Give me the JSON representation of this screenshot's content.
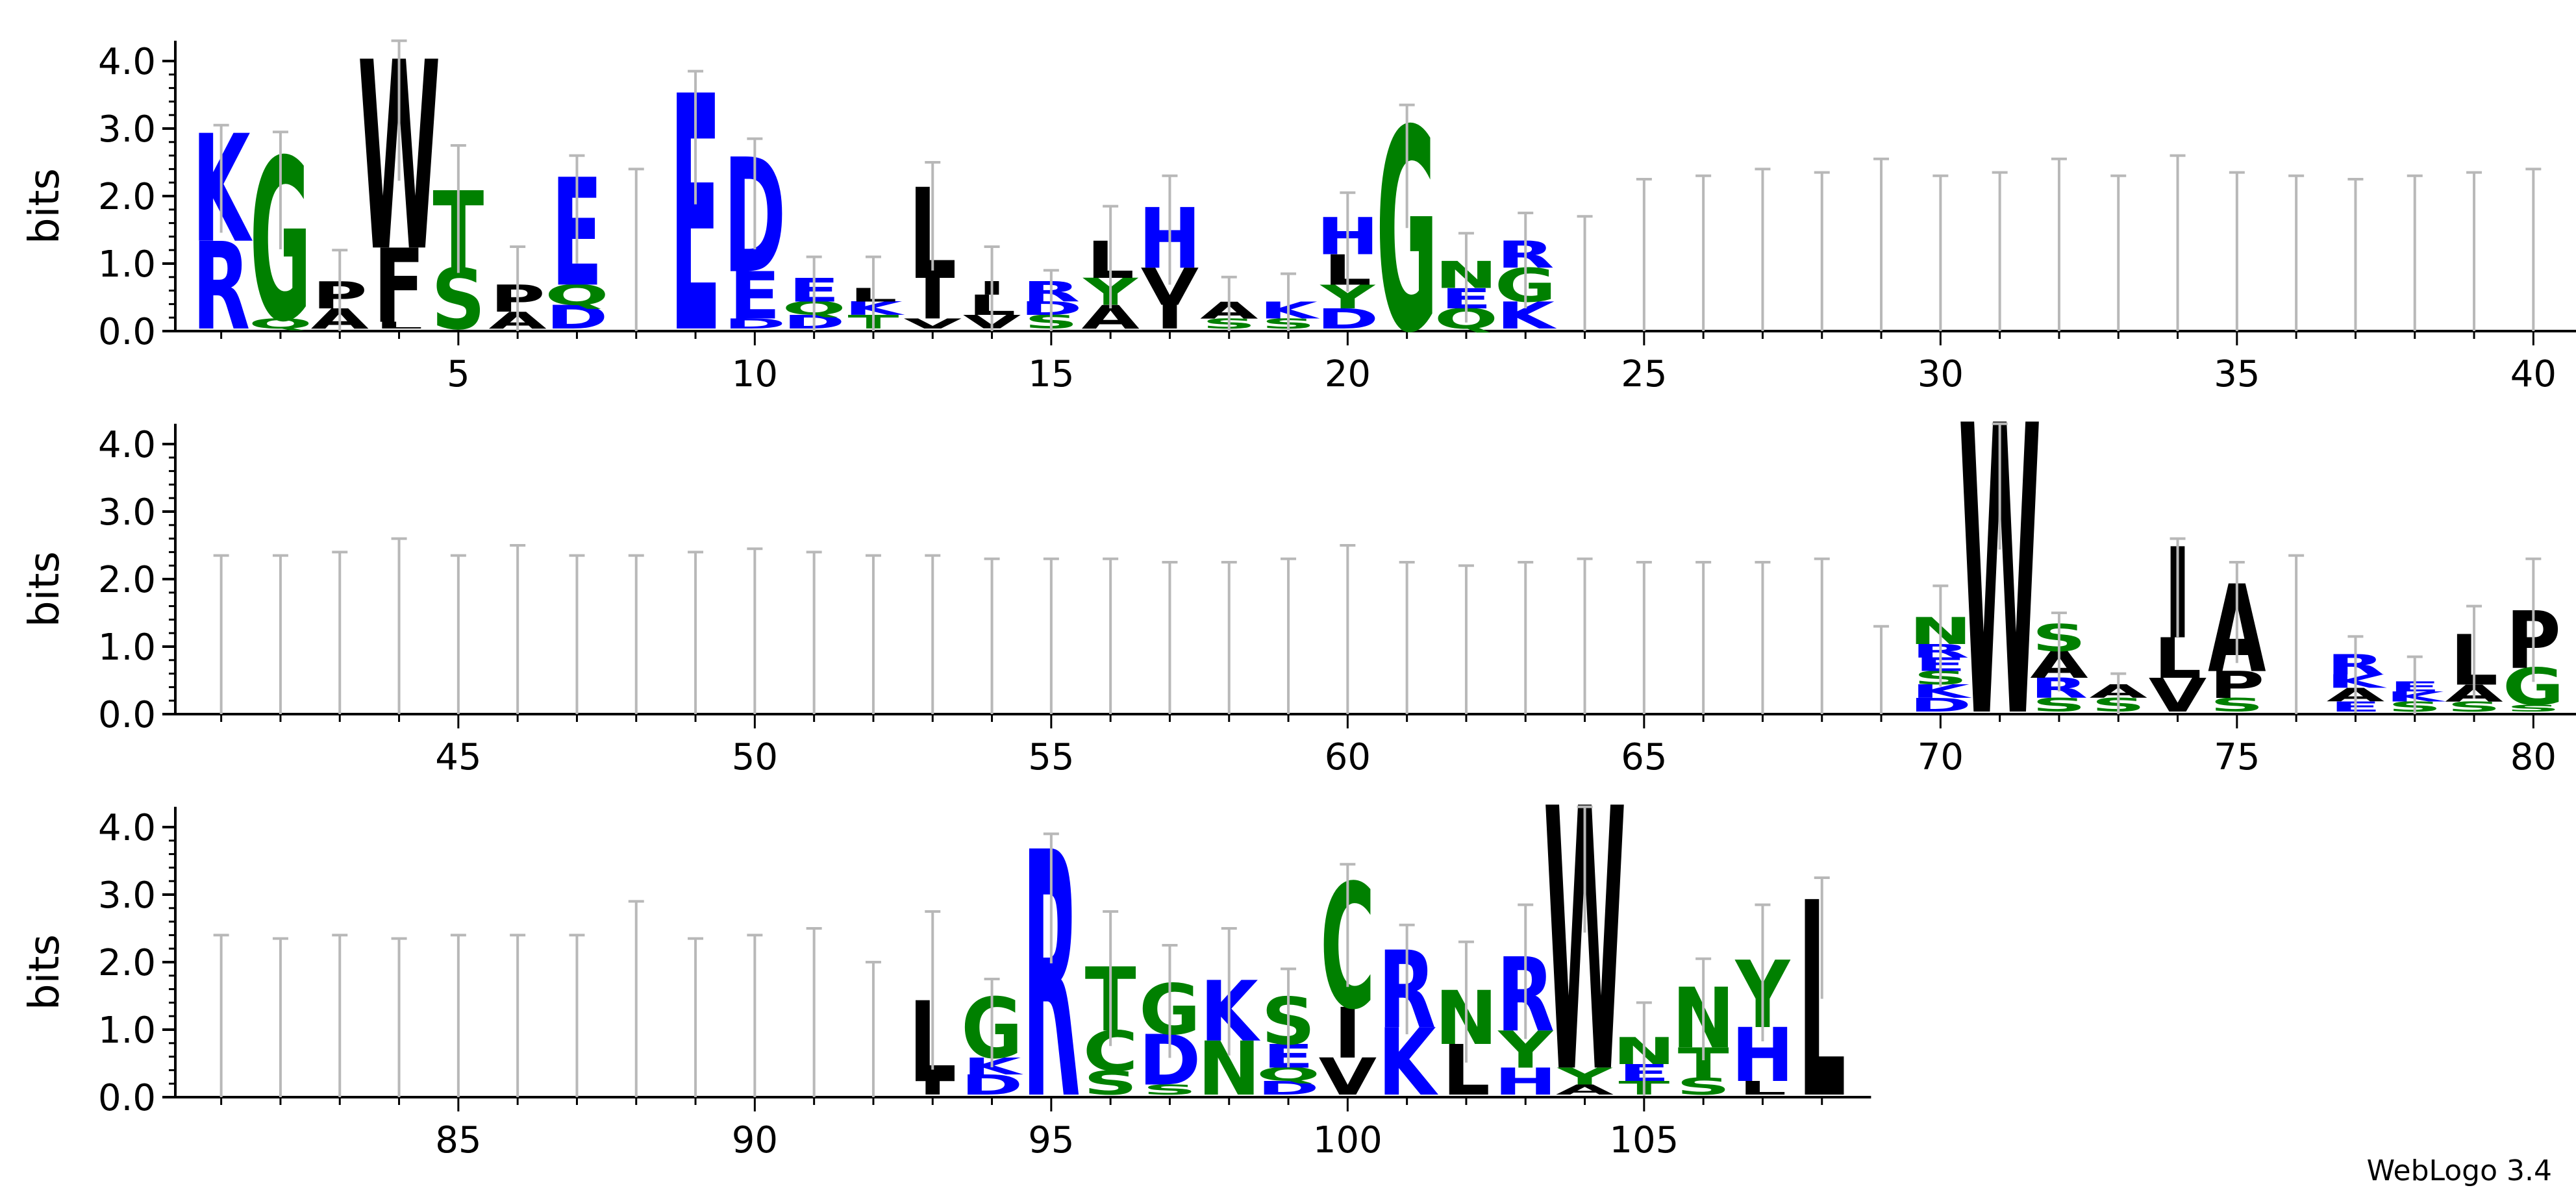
{
  "chart_data": {
    "type": "sequence-logo",
    "ylabel": "bits",
    "ylim": [
      0,
      4.3
    ],
    "yticks": [
      "0.0",
      "1.0",
      "2.0",
      "3.0",
      "4.0"
    ],
    "credit": "WebLogo 3.4",
    "colors": {
      "basic": "#0000ff",
      "polar": "#008000",
      "hydrophobic": "#000000"
    },
    "rows": [
      {
        "start": 1,
        "end": 40,
        "xticks": [
          5,
          10,
          15,
          20,
          25,
          30,
          35,
          40
        ]
      },
      {
        "start": 41,
        "end": 80,
        "xticks": [
          45,
          50,
          55,
          60,
          65,
          70,
          75,
          80
        ]
      },
      {
        "start": 81,
        "end": 108,
        "xticks": [
          85,
          90,
          95,
          100,
          105
        ]
      }
    ],
    "positions": [
      {
        "pos": 1,
        "err": 3.05,
        "stack": [
          [
            "R",
            1.3
          ],
          [
            "K",
            1.6
          ]
        ]
      },
      {
        "pos": 2,
        "err": 2.95,
        "stack": [
          [
            "Q",
            0.15
          ],
          [
            "G",
            2.4
          ]
        ]
      },
      {
        "pos": 3,
        "err": 1.2,
        "stack": [
          [
            "A",
            0.3
          ],
          [
            "P",
            0.4
          ]
        ]
      },
      {
        "pos": 4,
        "err": 4.3,
        "stack": [
          [
            "L",
            0.1
          ],
          [
            "F",
            1.1
          ],
          [
            "W",
            2.8
          ]
        ]
      },
      {
        "pos": 5,
        "err": 2.75,
        "stack": [
          [
            "S",
            0.9
          ],
          [
            "T",
            1.15
          ]
        ]
      },
      {
        "pos": 6,
        "err": 1.25,
        "stack": [
          [
            "A",
            0.25
          ],
          [
            "P",
            0.4
          ]
        ]
      },
      {
        "pos": 7,
        "err": 2.6,
        "stack": [
          [
            "D",
            0.35
          ],
          [
            "Q",
            0.3
          ],
          [
            "E",
            1.6
          ]
        ]
      },
      {
        "pos": 8,
        "err": 2.4,
        "stack": []
      },
      {
        "pos": 9,
        "err": 3.85,
        "stack": [
          [
            "E",
            3.5
          ]
        ]
      },
      {
        "pos": 10,
        "err": 2.85,
        "stack": [
          [
            "D",
            0.15
          ],
          [
            "E",
            0.7
          ],
          [
            "D",
            1.7
          ]
        ]
      },
      {
        "pos": 11,
        "err": 1.1,
        "stack": [
          [
            "D",
            0.2
          ],
          [
            "Q",
            0.2
          ],
          [
            "E",
            0.35
          ]
        ]
      },
      {
        "pos": 12,
        "err": 1.1,
        "stack": [
          [
            "T",
            0.2
          ],
          [
            "K",
            0.2
          ],
          [
            "L",
            0.2
          ]
        ]
      },
      {
        "pos": 13,
        "err": 2.5,
        "stack": [
          [
            "V",
            0.15
          ],
          [
            "I",
            0.6
          ],
          [
            "L",
            1.35
          ]
        ]
      },
      {
        "pos": 14,
        "err": 1.25,
        "stack": [
          [
            "V",
            0.2
          ],
          [
            "L",
            0.3
          ],
          [
            "I",
            0.2
          ]
        ]
      },
      {
        "pos": 15,
        "err": 0.9,
        "stack": [
          [
            "S",
            0.2
          ],
          [
            "D",
            0.2
          ],
          [
            "R",
            0.3
          ]
        ]
      },
      {
        "pos": 16,
        "err": 1.85,
        "stack": [
          [
            "A",
            0.35
          ],
          [
            "Y",
            0.4
          ],
          [
            "L",
            0.55
          ]
        ]
      },
      {
        "pos": 17,
        "err": 2.3,
        "stack": [
          [
            "I",
            0.35
          ],
          [
            "V",
            0.55
          ],
          [
            "H",
            0.9
          ]
        ]
      },
      {
        "pos": 18,
        "err": 0.8,
        "stack": [
          [
            "S",
            0.15
          ],
          [
            "A",
            0.25
          ]
        ]
      },
      {
        "pos": 19,
        "err": 0.85,
        "stack": [
          [
            "S",
            0.15
          ],
          [
            "K",
            0.25
          ]
        ]
      },
      {
        "pos": 20,
        "err": 2.05,
        "stack": [
          [
            "D",
            0.3
          ],
          [
            "Y",
            0.35
          ],
          [
            "L",
            0.45
          ],
          [
            "H",
            0.55
          ]
        ]
      },
      {
        "pos": 21,
        "err": 3.35,
        "stack": [
          [
            "G",
            3.0
          ]
        ]
      },
      {
        "pos": 22,
        "err": 1.45,
        "stack": [
          [
            "Q",
            0.3
          ],
          [
            "E",
            0.3
          ],
          [
            "N",
            0.4
          ]
        ]
      },
      {
        "pos": 23,
        "err": 1.75,
        "stack": [
          [
            "K",
            0.4
          ],
          [
            "G",
            0.5
          ],
          [
            "R",
            0.4
          ]
        ]
      },
      {
        "pos": 24,
        "err": 1.7,
        "stack": []
      },
      {
        "pos": 25,
        "err": 2.25,
        "stack": []
      },
      {
        "pos": 26,
        "err": 2.3,
        "stack": []
      },
      {
        "pos": 27,
        "err": 2.4,
        "stack": []
      },
      {
        "pos": 28,
        "err": 2.35,
        "stack": []
      },
      {
        "pos": 29,
        "err": 2.55,
        "stack": []
      },
      {
        "pos": 30,
        "err": 2.3,
        "stack": []
      },
      {
        "pos": 31,
        "err": 2.35,
        "stack": []
      },
      {
        "pos": 32,
        "err": 2.55,
        "stack": []
      },
      {
        "pos": 33,
        "err": 2.3,
        "stack": []
      },
      {
        "pos": 34,
        "err": 2.6,
        "stack": []
      },
      {
        "pos": 35,
        "err": 2.35,
        "stack": []
      },
      {
        "pos": 36,
        "err": 2.3,
        "stack": []
      },
      {
        "pos": 37,
        "err": 2.25,
        "stack": []
      },
      {
        "pos": 38,
        "err": 2.3,
        "stack": []
      },
      {
        "pos": 39,
        "err": 2.35,
        "stack": []
      },
      {
        "pos": 40,
        "err": 2.4,
        "stack": []
      },
      {
        "pos": 41,
        "err": 2.35,
        "stack": []
      },
      {
        "pos": 42,
        "err": 2.35,
        "stack": []
      },
      {
        "pos": 43,
        "err": 2.4,
        "stack": []
      },
      {
        "pos": 44,
        "err": 2.6,
        "stack": []
      },
      {
        "pos": 45,
        "err": 2.35,
        "stack": []
      },
      {
        "pos": 46,
        "err": 2.5,
        "stack": []
      },
      {
        "pos": 47,
        "err": 2.35,
        "stack": []
      },
      {
        "pos": 48,
        "err": 2.35,
        "stack": []
      },
      {
        "pos": 49,
        "err": 2.4,
        "stack": []
      },
      {
        "pos": 50,
        "err": 2.45,
        "stack": []
      },
      {
        "pos": 51,
        "err": 2.4,
        "stack": []
      },
      {
        "pos": 52,
        "err": 2.35,
        "stack": []
      },
      {
        "pos": 53,
        "err": 2.35,
        "stack": []
      },
      {
        "pos": 54,
        "err": 2.3,
        "stack": []
      },
      {
        "pos": 55,
        "err": 2.3,
        "stack": []
      },
      {
        "pos": 56,
        "err": 2.3,
        "stack": []
      },
      {
        "pos": 57,
        "err": 2.25,
        "stack": []
      },
      {
        "pos": 58,
        "err": 2.25,
        "stack": []
      },
      {
        "pos": 59,
        "err": 2.3,
        "stack": []
      },
      {
        "pos": 60,
        "err": 2.5,
        "stack": []
      },
      {
        "pos": 61,
        "err": 2.25,
        "stack": []
      },
      {
        "pos": 62,
        "err": 2.2,
        "stack": []
      },
      {
        "pos": 63,
        "err": 2.25,
        "stack": []
      },
      {
        "pos": 64,
        "err": 2.3,
        "stack": []
      },
      {
        "pos": 65,
        "err": 2.25,
        "stack": []
      },
      {
        "pos": 66,
        "err": 2.25,
        "stack": []
      },
      {
        "pos": 67,
        "err": 2.25,
        "stack": []
      },
      {
        "pos": 68,
        "err": 2.3,
        "stack": []
      },
      {
        "pos": 69,
        "err": 1.3,
        "stack": []
      },
      {
        "pos": 70,
        "err": 1.9,
        "stack": [
          [
            "D",
            0.2
          ],
          [
            "K",
            0.2
          ],
          [
            "S",
            0.2
          ],
          [
            "E",
            0.2
          ],
          [
            "R",
            0.2
          ],
          [
            "N",
            0.4
          ]
        ]
      },
      {
        "pos": 71,
        "err": 4.3,
        "stack": [
          [
            "W",
            4.3
          ]
        ]
      },
      {
        "pos": 72,
        "err": 1.5,
        "stack": [
          [
            "S",
            0.2
          ],
          [
            "R",
            0.3
          ],
          [
            "A",
            0.4
          ],
          [
            "S",
            0.4
          ]
        ]
      },
      {
        "pos": 73,
        "err": 0.6,
        "stack": [
          [
            "S",
            0.2
          ],
          [
            "A",
            0.2
          ]
        ]
      },
      {
        "pos": 74,
        "err": 2.6,
        "stack": [
          [
            "V",
            0.5
          ],
          [
            "L",
            0.6
          ],
          [
            "I",
            1.35
          ]
        ]
      },
      {
        "pos": 75,
        "err": 2.25,
        "stack": [
          [
            "S",
            0.2
          ],
          [
            "P",
            0.4
          ],
          [
            "A",
            1.3
          ]
        ]
      },
      {
        "pos": 76,
        "err": 2.35,
        "stack": []
      },
      {
        "pos": 77,
        "err": 1.15,
        "stack": [
          [
            "E",
            0.15
          ],
          [
            "A",
            0.2
          ],
          [
            "K",
            0.2
          ],
          [
            "R",
            0.3
          ]
        ]
      },
      {
        "pos": 78,
        "err": 0.85,
        "stack": [
          [
            "S",
            0.15
          ],
          [
            "K",
            0.15
          ],
          [
            "E",
            0.15
          ]
        ]
      },
      {
        "pos": 79,
        "err": 1.6,
        "stack": [
          [
            "S",
            0.15
          ],
          [
            "A",
            0.25
          ],
          [
            "L",
            0.75
          ]
        ]
      },
      {
        "pos": 80,
        "err": 2.3,
        "stack": [
          [
            "S",
            0.1
          ],
          [
            "G",
            0.55
          ],
          [
            "P",
            0.85
          ]
        ]
      },
      {
        "pos": 81,
        "err": 2.4,
        "stack": []
      },
      {
        "pos": 82,
        "err": 2.35,
        "stack": []
      },
      {
        "pos": 83,
        "err": 2.4,
        "stack": []
      },
      {
        "pos": 84,
        "err": 2.35,
        "stack": []
      },
      {
        "pos": 85,
        "err": 2.4,
        "stack": []
      },
      {
        "pos": 86,
        "err": 2.4,
        "stack": []
      },
      {
        "pos": 87,
        "err": 2.4,
        "stack": []
      },
      {
        "pos": 88,
        "err": 2.9,
        "stack": []
      },
      {
        "pos": 89,
        "err": 2.35,
        "stack": []
      },
      {
        "pos": 90,
        "err": 2.4,
        "stack": []
      },
      {
        "pos": 91,
        "err": 2.5,
        "stack": []
      },
      {
        "pos": 92,
        "err": 2.0,
        "stack": []
      },
      {
        "pos": 93,
        "err": 2.75,
        "stack": [
          [
            "I",
            0.2
          ],
          [
            "L",
            1.2
          ]
        ]
      },
      {
        "pos": 94,
        "err": 1.75,
        "stack": [
          [
            "D",
            0.3
          ],
          [
            "K",
            0.25
          ],
          [
            "G",
            0.9
          ]
        ]
      },
      {
        "pos": 95,
        "err": 3.9,
        "stack": [
          [
            "R",
            3.65
          ]
        ]
      },
      {
        "pos": 96,
        "err": 2.75,
        "stack": [
          [
            "S",
            0.35
          ],
          [
            "C",
            0.6
          ],
          [
            "T",
            0.95
          ]
        ]
      },
      {
        "pos": 97,
        "err": 2.25,
        "stack": [
          [
            "S",
            0.15
          ],
          [
            "D",
            0.75
          ],
          [
            "G",
            0.75
          ]
        ]
      },
      {
        "pos": 98,
        "err": 2.5,
        "stack": [
          [
            "N",
            0.8
          ],
          [
            "K",
            0.9
          ]
        ]
      },
      {
        "pos": 99,
        "err": 1.9,
        "stack": [
          [
            "D",
            0.2
          ],
          [
            "Q",
            0.2
          ],
          [
            "E",
            0.35
          ],
          [
            "S",
            0.7
          ]
        ]
      },
      {
        "pos": 100,
        "err": 3.45,
        "stack": [
          [
            "V",
            0.55
          ],
          [
            "I",
            0.75
          ],
          [
            "C",
            1.85
          ]
        ]
      },
      {
        "pos": 101,
        "err": 2.55,
        "stack": [
          [
            "K",
            1.0
          ],
          [
            "R",
            1.15
          ]
        ]
      },
      {
        "pos": 102,
        "err": 2.3,
        "stack": [
          [
            "L",
            0.75
          ],
          [
            "N",
            0.8
          ]
        ]
      },
      {
        "pos": 103,
        "err": 2.85,
        "stack": [
          [
            "H",
            0.4
          ],
          [
            "Y",
            0.55
          ],
          [
            "R",
            1.1
          ]
        ]
      },
      {
        "pos": 104,
        "err": 4.3,
        "stack": [
          [
            "A",
            0.15
          ],
          [
            "Y",
            0.25
          ],
          [
            "W",
            3.9
          ]
        ]
      },
      {
        "pos": 105,
        "err": 1.4,
        "stack": [
          [
            "T",
            0.2
          ],
          [
            "E",
            0.25
          ],
          [
            "N",
            0.4
          ]
        ]
      },
      {
        "pos": 106,
        "err": 2.05,
        "stack": [
          [
            "S",
            0.25
          ],
          [
            "T",
            0.45
          ],
          [
            "N",
            0.9
          ]
        ]
      },
      {
        "pos": 107,
        "err": 2.85,
        "stack": [
          [
            "L",
            0.2
          ],
          [
            "H",
            0.8
          ],
          [
            "Y",
            1.0
          ]
        ]
      },
      {
        "pos": 108,
        "err": 3.25,
        "stack": [
          [
            "L",
            2.9
          ]
        ]
      }
    ]
  }
}
